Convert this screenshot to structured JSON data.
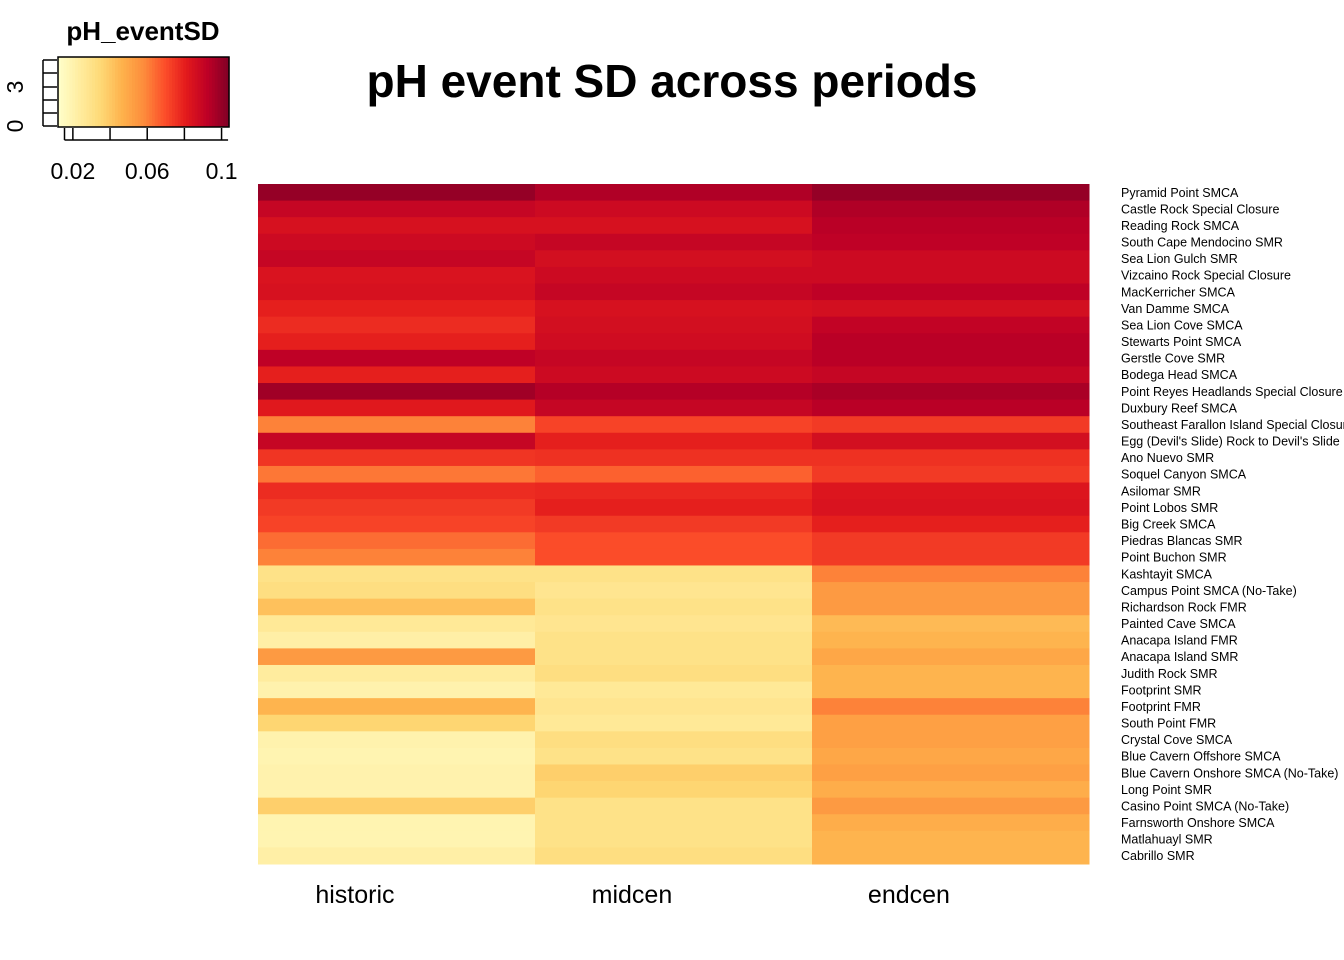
{
  "chart_data": {
    "type": "heatmap",
    "title": "pH event SD across periods",
    "columns": [
      "historic",
      "midcen",
      "endcen"
    ],
    "row_labels": [
      "Pyramid Point SMCA",
      "Castle Rock Special Closure",
      "Reading Rock SMCA",
      "South Cape Mendocino SMR",
      "Sea Lion Gulch SMR",
      "Vizcaino Rock Special Closure",
      "MacKerricher SMCA",
      "Van Damme SMCA",
      "Sea Lion Cove SMCA",
      "Stewarts Point SMCA",
      "Gerstle Cove SMR",
      "Bodega Head SMCA",
      "Point Reyes Headlands Special Closure",
      "Duxbury Reef SMCA",
      "Southeast Farallon Island Special Closure",
      "Egg (Devil's Slide) Rock to Devil's Slide",
      "Ano Nuevo SMR",
      "Soquel Canyon SMCA",
      "Asilomar SMR",
      "Point Lobos SMR",
      "Big Creek SMCA",
      "Piedras Blancas SMR",
      "Point Buchon SMR",
      "Kashtayit SMCA",
      "Campus Point SMCA (No-Take)",
      "Richardson Rock FMR",
      "Painted Cave SMCA",
      "Anacapa Island FMR",
      "Anacapa Island SMR",
      "Judith Rock SMR",
      "Footprint SMR",
      "Footprint FMR",
      "South Point FMR",
      "Crystal Cove SMCA",
      "Blue Cavern Offshore SMCA",
      "Blue Cavern Onshore SMCA (No-Take)",
      "Long Point SMR",
      "Casino Point SMCA (No-Take)",
      "Farnsworth Onshore SMCA",
      "Matlahuayl SMR",
      "Cabrillo SMR"
    ],
    "values": {
      "historic": [
        0.1,
        0.09,
        0.085,
        0.088,
        0.09,
        0.084,
        0.085,
        0.08,
        0.077,
        0.08,
        0.092,
        0.08,
        0.098,
        0.082,
        0.06,
        0.09,
        0.075,
        0.062,
        0.077,
        0.074,
        0.072,
        0.064,
        0.06,
        0.03,
        0.032,
        0.042,
        0.026,
        0.022,
        0.054,
        0.024,
        0.02,
        0.046,
        0.036,
        0.02,
        0.019,
        0.02,
        0.02,
        0.038,
        0.019,
        0.019,
        0.022
      ],
      "midcen": [
        0.095,
        0.088,
        0.085,
        0.09,
        0.086,
        0.088,
        0.09,
        0.085,
        0.086,
        0.087,
        0.09,
        0.088,
        0.094,
        0.09,
        0.072,
        0.08,
        0.076,
        0.066,
        0.078,
        0.08,
        0.074,
        0.07,
        0.07,
        0.03,
        0.028,
        0.03,
        0.028,
        0.03,
        0.03,
        0.032,
        0.026,
        0.028,
        0.026,
        0.032,
        0.03,
        0.038,
        0.036,
        0.03,
        0.03,
        0.03,
        0.032
      ],
      "endcen": [
        0.1,
        0.095,
        0.093,
        0.092,
        0.088,
        0.088,
        0.092,
        0.086,
        0.091,
        0.093,
        0.093,
        0.09,
        0.096,
        0.093,
        0.074,
        0.086,
        0.076,
        0.074,
        0.083,
        0.084,
        0.08,
        0.074,
        0.074,
        0.06,
        0.054,
        0.054,
        0.044,
        0.046,
        0.05,
        0.046,
        0.046,
        0.06,
        0.052,
        0.052,
        0.05,
        0.052,
        0.048,
        0.054,
        0.048,
        0.046,
        0.046
      ]
    },
    "color_key": {
      "title": "pH_eventSD",
      "scale": "YlOrRd",
      "colors": [
        "#FFFFCC",
        "#FFEDA0",
        "#FED976",
        "#FEB24C",
        "#FD8D3C",
        "#FC4E2A",
        "#E31A1C",
        "#BD0026",
        "#800026"
      ],
      "range": [
        0.012,
        0.104
      ],
      "ticks": [
        0.02,
        0.06,
        0.1
      ],
      "tick_labels": [
        "0.02",
        "0.06",
        "0.1"
      ],
      "count_ticks": [
        "0",
        "3"
      ]
    }
  }
}
